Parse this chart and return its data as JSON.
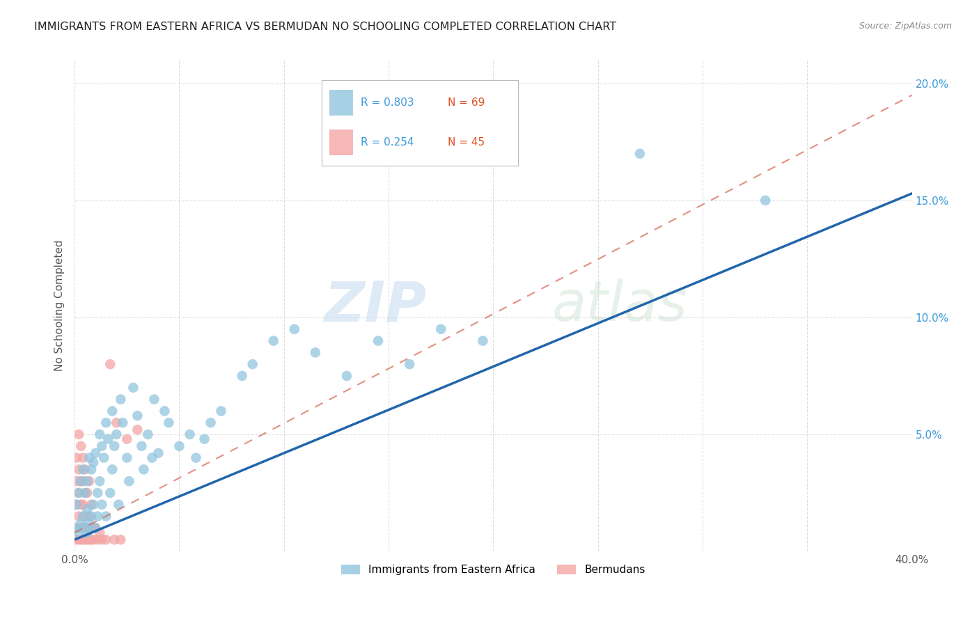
{
  "title": "IMMIGRANTS FROM EASTERN AFRICA VS BERMUDAN NO SCHOOLING COMPLETED CORRELATION CHART",
  "source": "Source: ZipAtlas.com",
  "ylabel": "No Schooling Completed",
  "xlim": [
    0.0,
    0.4
  ],
  "ylim": [
    0.0,
    0.21
  ],
  "blue_R": 0.803,
  "blue_N": 69,
  "pink_R": 0.254,
  "pink_N": 45,
  "blue_color": "#92c5de",
  "pink_color": "#f4a5a5",
  "blue_line_color": "#2166ac",
  "pink_line_color": "#d6604d",
  "background_color": "#ffffff",
  "grid_color": "#dddddd",
  "blue_line_x0": 0.0,
  "blue_line_y0": 0.005,
  "blue_line_x1": 0.4,
  "blue_line_y1": 0.153,
  "pink_line_x0": 0.0,
  "pink_line_y0": 0.008,
  "pink_line_x1": 0.4,
  "pink_line_y1": 0.195,
  "blue_points_x": [
    0.001,
    0.001,
    0.002,
    0.002,
    0.003,
    0.003,
    0.004,
    0.004,
    0.005,
    0.005,
    0.006,
    0.006,
    0.006,
    0.007,
    0.007,
    0.008,
    0.008,
    0.009,
    0.009,
    0.01,
    0.01,
    0.011,
    0.011,
    0.012,
    0.012,
    0.013,
    0.013,
    0.014,
    0.015,
    0.015,
    0.016,
    0.017,
    0.018,
    0.018,
    0.019,
    0.02,
    0.021,
    0.022,
    0.023,
    0.025,
    0.026,
    0.028,
    0.03,
    0.032,
    0.033,
    0.035,
    0.037,
    0.038,
    0.04,
    0.043,
    0.045,
    0.05,
    0.055,
    0.058,
    0.062,
    0.065,
    0.07,
    0.08,
    0.085,
    0.095,
    0.105,
    0.115,
    0.13,
    0.145,
    0.16,
    0.175,
    0.195,
    0.27,
    0.33
  ],
  "blue_points_y": [
    0.01,
    0.02,
    0.008,
    0.025,
    0.012,
    0.03,
    0.015,
    0.035,
    0.01,
    0.025,
    0.008,
    0.018,
    0.03,
    0.012,
    0.04,
    0.015,
    0.035,
    0.02,
    0.038,
    0.01,
    0.042,
    0.025,
    0.015,
    0.03,
    0.05,
    0.02,
    0.045,
    0.04,
    0.015,
    0.055,
    0.048,
    0.025,
    0.06,
    0.035,
    0.045,
    0.05,
    0.02,
    0.065,
    0.055,
    0.04,
    0.03,
    0.07,
    0.058,
    0.045,
    0.035,
    0.05,
    0.04,
    0.065,
    0.042,
    0.06,
    0.055,
    0.045,
    0.05,
    0.04,
    0.048,
    0.055,
    0.06,
    0.075,
    0.08,
    0.09,
    0.095,
    0.085,
    0.075,
    0.09,
    0.08,
    0.095,
    0.09,
    0.17,
    0.15
  ],
  "pink_points_x": [
    0.001,
    0.001,
    0.001,
    0.001,
    0.001,
    0.002,
    0.002,
    0.002,
    0.002,
    0.002,
    0.003,
    0.003,
    0.003,
    0.003,
    0.003,
    0.004,
    0.004,
    0.004,
    0.004,
    0.004,
    0.005,
    0.005,
    0.005,
    0.005,
    0.006,
    0.006,
    0.006,
    0.007,
    0.007,
    0.007,
    0.008,
    0.008,
    0.009,
    0.009,
    0.01,
    0.011,
    0.012,
    0.013,
    0.015,
    0.017,
    0.019,
    0.02,
    0.022,
    0.025,
    0.03
  ],
  "pink_points_y": [
    0.005,
    0.01,
    0.02,
    0.03,
    0.04,
    0.005,
    0.015,
    0.025,
    0.035,
    0.05,
    0.005,
    0.01,
    0.02,
    0.03,
    0.045,
    0.005,
    0.01,
    0.02,
    0.03,
    0.04,
    0.005,
    0.015,
    0.025,
    0.035,
    0.005,
    0.01,
    0.025,
    0.005,
    0.015,
    0.03,
    0.005,
    0.02,
    0.005,
    0.01,
    0.01,
    0.005,
    0.008,
    0.005,
    0.005,
    0.08,
    0.005,
    0.055,
    0.005,
    0.048,
    0.052
  ]
}
